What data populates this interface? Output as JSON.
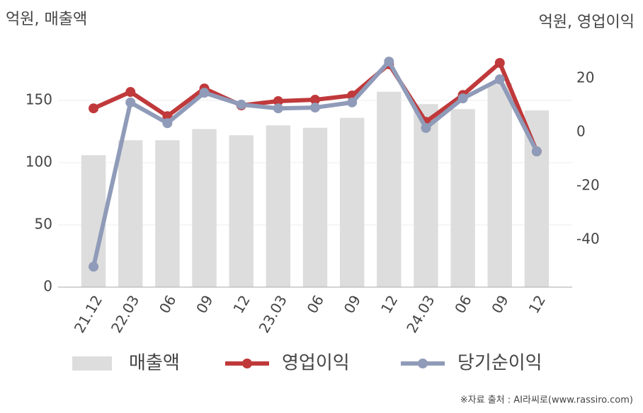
{
  "chart_data": {
    "type": "bar-line",
    "ylabel": "억원, 매출액",
    "y2label": "억원, 영업이익",
    "source": "※자료 출처 : AI라씨로(www.rassiro.com)",
    "categories": [
      "21.12",
      "22.03",
      "06",
      "09",
      "12",
      "23.03",
      "06",
      "09",
      "12",
      "24.03",
      "06",
      "09",
      "12"
    ],
    "series": [
      {
        "name": "매출액",
        "kind": "bar",
        "color": "#dddddd",
        "values": [
          106,
          118,
          118,
          127,
          122,
          130,
          128,
          136,
          157,
          147,
          143,
          164,
          142
        ]
      },
      {
        "name": "영업이익",
        "kind": "line",
        "axis": "y2",
        "color": "#c0393b",
        "values": [
          8.9,
          15,
          6.0,
          16.3,
          10,
          11.6,
          12.1,
          13.7,
          25.3,
          3.9,
          13.9,
          25.8,
          -7.1
        ]
      },
      {
        "name": "당기순이익",
        "kind": "line",
        "axis": "y2",
        "color": "#8f9bb8",
        "values": [
          -50,
          11.1,
          3.4,
          14.7,
          10.3,
          8.9,
          9.2,
          11.1,
          26.3,
          1.6,
          12.6,
          19.7,
          -7.1
        ]
      }
    ],
    "ylim": [
      0,
      200
    ],
    "yticks": [
      0,
      50,
      100,
      150
    ],
    "y2lim": [
      -57.6,
      35
    ],
    "y2ticks": [
      -40,
      -20,
      0,
      20
    ],
    "grid": true
  }
}
